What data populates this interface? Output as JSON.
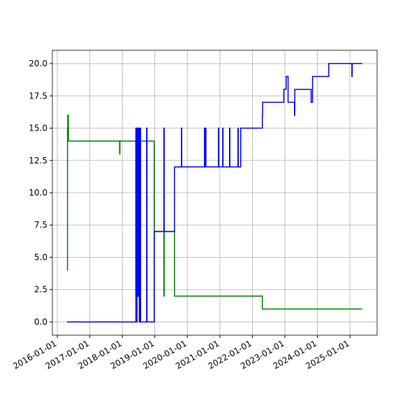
{
  "chart_data": {
    "type": "step",
    "xlim": [
      "2015-11-07",
      "2025-11-02"
    ],
    "ylim": [
      -1.03,
      21.03
    ],
    "grid": true,
    "xticks": [
      "2016-01-01",
      "2017-01-01",
      "2018-01-01",
      "2019-01-01",
      "2020-01-01",
      "2021-01-01",
      "2022-01-01",
      "2023-01-01",
      "2024-01-01",
      "2025-01-01"
    ],
    "yticks": [
      {
        "value": 0,
        "label": "0.0"
      },
      {
        "value": 2.5,
        "label": "2.5"
      },
      {
        "value": 5,
        "label": "5.0"
      },
      {
        "value": 7.5,
        "label": "7.5"
      },
      {
        "value": 10,
        "label": "10.0"
      },
      {
        "value": 12.5,
        "label": "12.5"
      },
      {
        "value": 15,
        "label": "15.0"
      },
      {
        "value": 17.5,
        "label": "17.5"
      },
      {
        "value": 20,
        "label": "20.0"
      }
    ],
    "series": [
      {
        "color": "#0000ff",
        "x": [
          "2016-04-20",
          "2018-06-02",
          "2018-06-05",
          "2018-06-15",
          "2018-06-20",
          "2018-06-28",
          "2018-07-10",
          "2018-07-20",
          "2018-07-25",
          "2018-10-01",
          "2018-10-05",
          "2018-12-25",
          "2019-04-13",
          "2019-04-16",
          "2019-08-10",
          "2019-10-27",
          "2019-10-30",
          "2020-07-12",
          "2020-07-15",
          "2020-07-25",
          "2020-07-28",
          "2020-12-16",
          "2020-12-19",
          "2021-02-02",
          "2021-02-05",
          "2021-04-20",
          "2021-04-23",
          "2021-07-23",
          "2021-07-26",
          "2021-08-23",
          "2022-04-23",
          "2022-04-26",
          "2022-12-20",
          "2023-01-15",
          "2023-02-06",
          "2023-04-19",
          "2023-04-22",
          "2023-10-23",
          "2023-11-08",
          "2024-05-08",
          "2025-01-23",
          "2025-01-26",
          "2025-05-19"
        ],
        "values": [
          0,
          15,
          0,
          15,
          2,
          15,
          0,
          15,
          0,
          15,
          0,
          7,
          15,
          7,
          12,
          15,
          12,
          15,
          12,
          15,
          12,
          15,
          12,
          15,
          12,
          15,
          12,
          15,
          12,
          15,
          16,
          17,
          18,
          19,
          17,
          16,
          18,
          17,
          19,
          20,
          19,
          20,
          20
        ]
      },
      {
        "color": "#008000",
        "x": [
          "2016-04-20",
          "2016-04-25",
          "2016-04-28",
          "2016-05-05",
          "2017-12-01",
          "2017-12-05",
          "2018-06-02",
          "2018-06-05",
          "2018-06-15",
          "2018-06-20",
          "2018-06-28",
          "2018-07-05",
          "2018-12-25",
          "2019-04-13",
          "2019-04-16",
          "2019-08-10",
          "2022-04-23",
          "2025-05-19"
        ],
        "values": [
          4,
          15,
          16,
          14,
          13,
          14,
          2,
          14,
          2,
          14,
          2,
          14,
          7,
          2,
          7,
          2,
          1,
          1
        ]
      }
    ]
  }
}
